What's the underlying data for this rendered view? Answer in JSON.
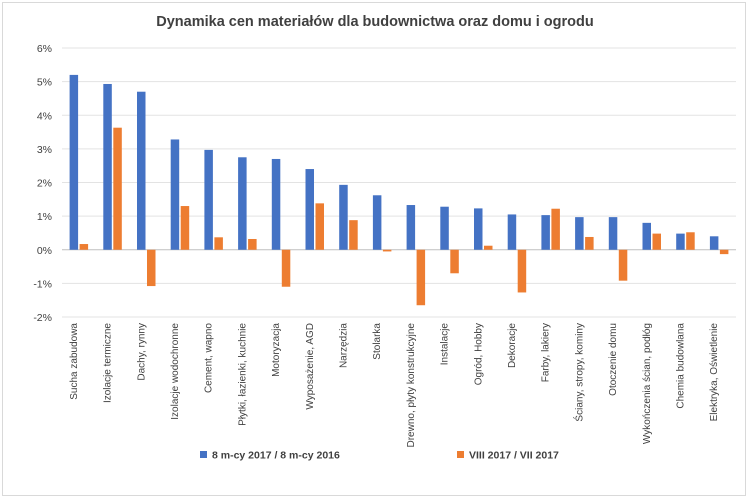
{
  "chart_data": {
    "type": "bar",
    "title": "Dynamika cen materiałów dla budownictwa oraz domu i ogrodu",
    "categories": [
      "Sucha zabudowa",
      "Izolacje termiczne",
      "Dachy, rynny",
      "Izolacje wodochronne",
      "Cement, wapno",
      "Płytki, łazienki, kuchnie",
      "Motoryzacja",
      "Wyposażenie, AGD",
      "Narzędzia",
      "Stolarka",
      "Drewno, płyty konstrukcyjne",
      "Instalacje",
      "Ogród, Hobby",
      "Dekoracje",
      "Farby, lakiery",
      "Ściany, stropy, kominy",
      "Otoczenie domu",
      "Wykończenia ścian, podłóg",
      "Chemia budowlana",
      "Elektryka, Oświetlenie"
    ],
    "series": [
      {
        "name": "8 m-cy 2017 / 8 m-cy 2016",
        "color": "#4472c4",
        "values": [
          5.2,
          4.93,
          4.7,
          3.28,
          2.97,
          2.75,
          2.7,
          2.4,
          1.93,
          1.62,
          1.33,
          1.28,
          1.23,
          1.05,
          1.03,
          0.97,
          0.97,
          0.8,
          0.48,
          0.4
        ]
      },
      {
        "name": "VIII 2017 / VII 2017",
        "color": "#ed7d31",
        "values": [
          0.17,
          3.63,
          -1.08,
          1.3,
          0.37,
          0.32,
          -1.1,
          1.38,
          0.88,
          -0.05,
          -1.65,
          -0.7,
          0.12,
          -1.27,
          1.22,
          0.38,
          -0.92,
          0.48,
          0.52,
          -0.13
        ]
      }
    ],
    "yticks": [
      "-2%",
      "-1%",
      "0%",
      "1%",
      "2%",
      "3%",
      "4%",
      "5%",
      "6%"
    ],
    "ylim": [
      -2,
      6
    ],
    "gridlines": true,
    "legend_position": "bottom"
  }
}
